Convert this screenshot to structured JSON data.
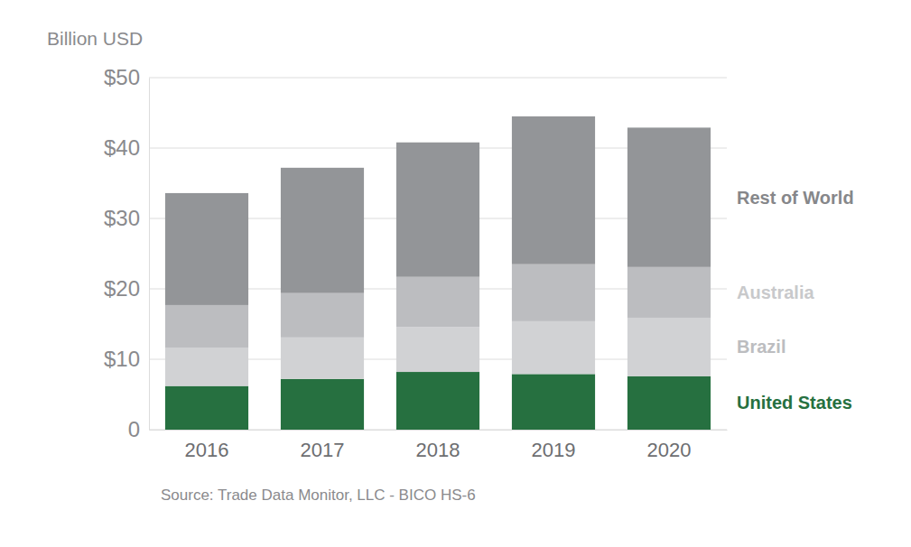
{
  "chart_data": {
    "type": "bar",
    "stacked": true,
    "ylabel": "Billion USD",
    "source": "Source: Trade Data Monitor, LLC - BICO HS-6",
    "categories": [
      "2016",
      "2017",
      "2018",
      "2019",
      "2020"
    ],
    "series": [
      {
        "name": "United States",
        "color": "#267040",
        "values": [
          6.2,
          7.2,
          8.2,
          7.9,
          7.6
        ]
      },
      {
        "name": "Brazil",
        "color": "#d1d2d4",
        "values": [
          5.4,
          5.9,
          6.4,
          7.5,
          8.3
        ]
      },
      {
        "name": "Australia",
        "color": "#bcbdc0",
        "values": [
          6.1,
          6.3,
          7.1,
          8.1,
          7.2
        ]
      },
      {
        "name": "Rest of World",
        "color": "#939598",
        "values": [
          15.9,
          17.8,
          19.1,
          21.0,
          19.8
        ]
      }
    ],
    "ylim": [
      0,
      50
    ],
    "yticks": [
      0,
      {
        "value": 10,
        "label": "$10"
      },
      {
        "value": 20,
        "label": "$20"
      },
      {
        "value": 30,
        "label": "$30"
      },
      {
        "value": 40,
        "label": "$40"
      },
      {
        "value": 50,
        "label": "$50"
      }
    ],
    "grid": true,
    "legend": "right"
  }
}
